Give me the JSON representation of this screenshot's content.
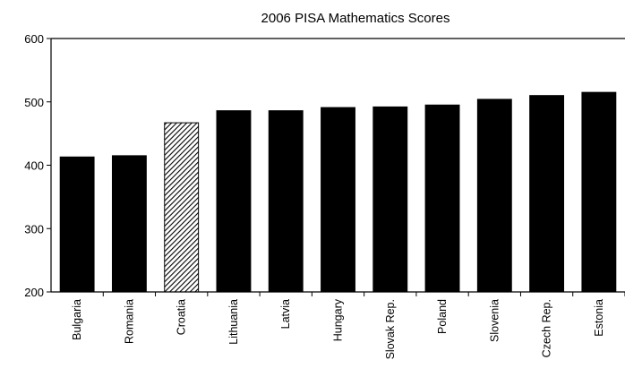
{
  "chart_data": {
    "type": "bar",
    "title": "2006 PISA Mathematics Scores",
    "xlabel": "",
    "ylabel": "",
    "ylim": [
      200,
      600
    ],
    "yticks": [
      200,
      300,
      400,
      500,
      600
    ],
    "grid": false,
    "legend": "none",
    "categories": [
      "Bulgaria",
      "Romania",
      "Croatia",
      "Lithuania",
      "Latvia",
      "Hungary",
      "Slovak Rep.",
      "Poland",
      "Slovenia",
      "Czech Rep.",
      "Estonia"
    ],
    "values": [
      413,
      415,
      467,
      486,
      486,
      491,
      492,
      495,
      504,
      510,
      515
    ],
    "highlight_category": "Croatia",
    "colors": {
      "bar": "#000000",
      "highlight_fill": "hatched",
      "axis": "#000000"
    }
  }
}
